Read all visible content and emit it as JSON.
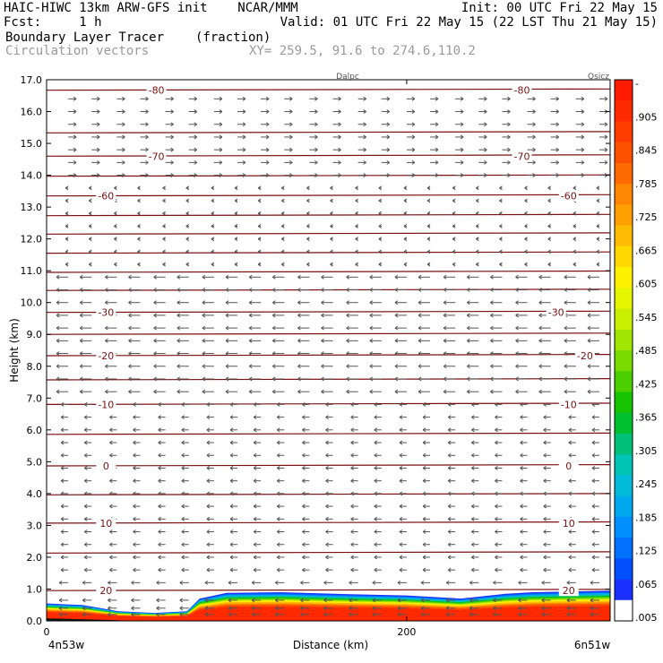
{
  "header": {
    "left_line1": "HAIC-HIWC 13km ARW-GFS init    NCAR/MMM",
    "left_line2": "Fcst:     1 h",
    "right_line1": "Init: 00 UTC Fri 22 May 15",
    "right_line2": "Valid: 01 UTC Fri 22 May 15 (22 LST Thu 21 May 15)",
    "field_name": "Boundary Layer Tracer",
    "field_units": "(fraction)",
    "vector_label": "Circulation vectors",
    "xy_label": "XY= 259.5, 91.6 to 274.6,110.2"
  },
  "top_labels": {
    "left": "Dalpc",
    "right": "Qsicz"
  },
  "chart_data": {
    "type": "heatmap",
    "title": "Boundary Layer Tracer",
    "units": "(fraction)",
    "xlabel": "Distance (km)",
    "ylabel": "Height (km)",
    "xlim": [
      0,
      313
    ],
    "ylim": [
      0.0,
      17.0
    ],
    "x_ticks": [
      0,
      200
    ],
    "x_tick_labels": [
      "0",
      "200"
    ],
    "x_end_labels": [
      "4n53w",
      "6n51w"
    ],
    "y_ticks": [
      0.0,
      1.0,
      2.0,
      3.0,
      4.0,
      5.0,
      6.0,
      7.0,
      8.0,
      9.0,
      10.0,
      11.0,
      12.0,
      13.0,
      14.0,
      15.0,
      16.0,
      17.0
    ],
    "y_tick_labels": [
      "0.0",
      "1.0",
      "2.0",
      "3.0",
      "4.0",
      "5.0",
      "6.0",
      "7.0",
      "8.0",
      "9.0",
      "10.0",
      "11.0",
      "12.0",
      "13.0",
      "14.0",
      "15.0",
      "16.0",
      "17.0"
    ],
    "colorbar": {
      "labels": [
        "-",
        ".905",
        ".845",
        ".785",
        ".725",
        ".665",
        ".605",
        ".545",
        ".485",
        ".425",
        ".365",
        ".305",
        ".245",
        ".185",
        ".125",
        ".065",
        ".005"
      ],
      "colors": [
        "#ff1a00",
        "#ff2a00",
        "#ff3c00",
        "#ff5000",
        "#ff6a00",
        "#ff8600",
        "#ffa000",
        "#ffbc00",
        "#ffd800",
        "#fff000",
        "#e6f500",
        "#c8f000",
        "#a0e600",
        "#78dc00",
        "#4cd000",
        "#18c400",
        "#00c030",
        "#00c07a",
        "#00c4b4",
        "#00bcd8",
        "#00a8f0",
        "#0090ff",
        "#0070ff",
        "#0050ff",
        "#1a30ff",
        "#ffffff"
      ]
    },
    "temperature_contours": {
      "color": "#7a1010",
      "heights": [
        0.95,
        2.13,
        3.07,
        3.96,
        4.87,
        5.86,
        6.8,
        7.57,
        8.33,
        9.0,
        9.69,
        10.38,
        10.95,
        11.55,
        12.15,
        12.73,
        13.35,
        13.97,
        14.6,
        15.33,
        16.67
      ],
      "labels": [
        {
          "text": "20",
          "height": 0.95,
          "positions": [
            33,
            290
          ]
        },
        {
          "text": "10",
          "height": 3.07,
          "positions": [
            33,
            290
          ]
        },
        {
          "text": "0",
          "height": 4.87,
          "positions": [
            33,
            290
          ]
        },
        {
          "text": "-10",
          "height": 6.8,
          "positions": [
            33,
            290
          ]
        },
        {
          "text": "-20",
          "height": 8.33,
          "positions": [
            33,
            299
          ]
        },
        {
          "text": "-30",
          "height": 9.69,
          "positions": [
            33,
            283
          ]
        },
        {
          "text": "-60",
          "height": 13.35,
          "positions": [
            33,
            290
          ]
        },
        {
          "text": "-70",
          "height": 14.6,
          "positions": [
            61,
            264
          ]
        },
        {
          "text": "-80",
          "height": 16.67,
          "positions": [
            61,
            264
          ]
        }
      ]
    },
    "tracer_boundary_top": [
      [
        0,
        0.55
      ],
      [
        10,
        0.52
      ],
      [
        20,
        0.5
      ],
      [
        30,
        0.4
      ],
      [
        40,
        0.3
      ],
      [
        60,
        0.25
      ],
      [
        78,
        0.3
      ],
      [
        85,
        0.7
      ],
      [
        100,
        0.88
      ],
      [
        130,
        0.9
      ],
      [
        160,
        0.85
      ],
      [
        200,
        0.8
      ],
      [
        230,
        0.7
      ],
      [
        255,
        0.85
      ],
      [
        270,
        0.9
      ],
      [
        290,
        0.92
      ],
      [
        313,
        0.95
      ]
    ],
    "wind_vectors": {
      "color": "#555555",
      "columns": [
        12,
        25,
        39,
        52,
        66,
        79,
        93,
        106,
        119,
        132,
        146,
        159,
        173,
        186,
        200,
        213,
        227,
        240,
        253,
        267,
        280,
        294,
        307
      ],
      "rows": [
        0.2,
        0.4,
        0.65,
        1.2,
        1.6,
        2.0,
        2.4,
        2.8,
        3.2,
        3.6,
        4.0,
        4.4,
        4.8,
        5.2,
        5.6,
        6.0,
        6.4,
        6.8,
        7.2,
        7.6,
        8.0,
        8.4,
        8.8,
        9.2,
        9.6,
        10.0,
        10.4,
        10.8,
        11.2,
        11.6,
        12.0,
        12.4,
        12.8,
        13.2,
        13.6,
        14.0,
        14.4,
        14.8,
        15.2,
        15.6,
        16.0,
        16.4
      ]
    }
  }
}
